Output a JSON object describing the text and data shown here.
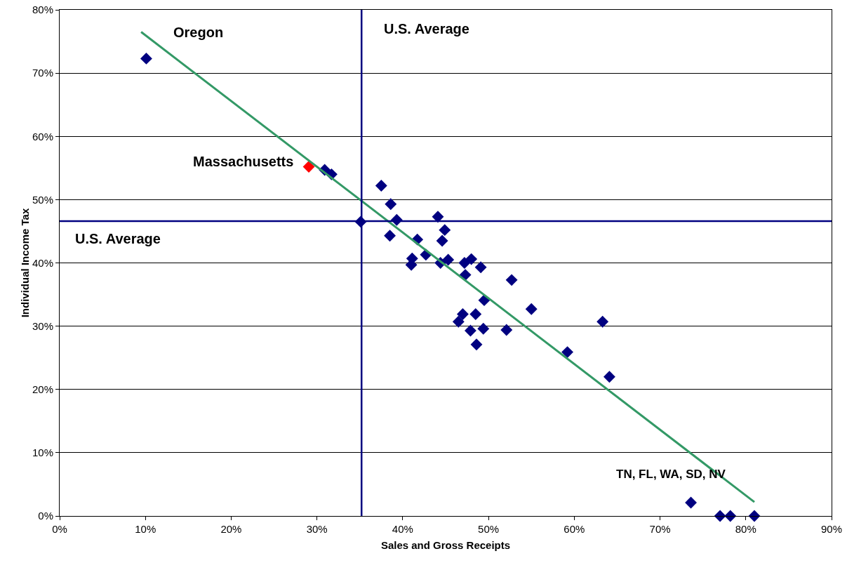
{
  "chart_data": {
    "type": "scatter",
    "xlabel": "Sales and Gross Receipts",
    "ylabel": "Individual Income Tax",
    "xlim": [
      0,
      90
    ],
    "ylim": [
      0,
      80
    ],
    "xticks": [
      {
        "value": 0,
        "label": "0%"
      },
      {
        "value": 10,
        "label": "10%"
      },
      {
        "value": 20,
        "label": "20%"
      },
      {
        "value": 30,
        "label": "30%"
      },
      {
        "value": 40,
        "label": "40%"
      },
      {
        "value": 50,
        "label": "50%"
      },
      {
        "value": 60,
        "label": "60%"
      },
      {
        "value": 70,
        "label": "70%"
      },
      {
        "value": 80,
        "label": "80%"
      },
      {
        "value": 90,
        "label": "90%"
      }
    ],
    "yticks": [
      {
        "value": 0,
        "label": "0%"
      },
      {
        "value": 10,
        "label": "10%"
      },
      {
        "value": 20,
        "label": "20%"
      },
      {
        "value": 30,
        "label": "30%"
      },
      {
        "value": 40,
        "label": "40%"
      },
      {
        "value": 50,
        "label": "50%"
      },
      {
        "value": 60,
        "label": "60%"
      },
      {
        "value": 70,
        "label": "70%"
      },
      {
        "value": 80,
        "label": "80%"
      }
    ],
    "grid": "y",
    "marker": "diamond",
    "series": [
      {
        "color": "#000080",
        "x": [
          10.1,
          30.9,
          31.7,
          35.1,
          37.5,
          38.6,
          39.3,
          38.5,
          41.7,
          41.1,
          41.0,
          42.7,
          44.1,
          44.9,
          44.6,
          44.4,
          45.3,
          47.2,
          48.0,
          47.3,
          49.1,
          52.7,
          49.5,
          55.0,
          47.0,
          46.5,
          48.5,
          47.9,
          49.4,
          48.6,
          52.1,
          59.2,
          63.3,
          64.1,
          73.6,
          77.0,
          78.2,
          81.0
        ],
        "values": [
          72.3,
          54.7,
          54.0,
          46.5,
          52.2,
          49.3,
          46.8,
          44.3,
          43.7,
          40.7,
          39.7,
          41.3,
          47.3,
          45.2,
          43.5,
          40.0,
          40.5,
          40.0,
          40.6,
          38.1,
          39.3,
          37.3,
          34.1,
          32.7,
          31.9,
          30.7,
          31.9,
          29.3,
          29.6,
          27.1,
          29.4,
          25.9,
          30.7,
          22.0,
          2.1,
          0,
          0,
          0
        ]
      },
      {
        "color": "#ff0000",
        "x": [
          29.05
        ],
        "values": [
          55.2
        ]
      },
      {
        "type": "line",
        "color": "#339966",
        "marker": "none",
        "x": [
          9.5,
          81.0
        ],
        "values": [
          76.5,
          2.2
        ]
      }
    ],
    "ref_lines": [
      {
        "axis": "x",
        "value": 35.2,
        "label": "U.S. Average",
        "color": "#000080"
      },
      {
        "axis": "y",
        "value": 46.6,
        "label": "U.S. Average",
        "color": "#000080"
      }
    ],
    "annotations": [
      "Oregon",
      {
        "text": "Massachusetts",
        "x": 29.05,
        "y": 55.2
      },
      {
        "text": "TN, FL, WA, SD, NV",
        "x": 77.0,
        "y": 0
      }
    ]
  }
}
